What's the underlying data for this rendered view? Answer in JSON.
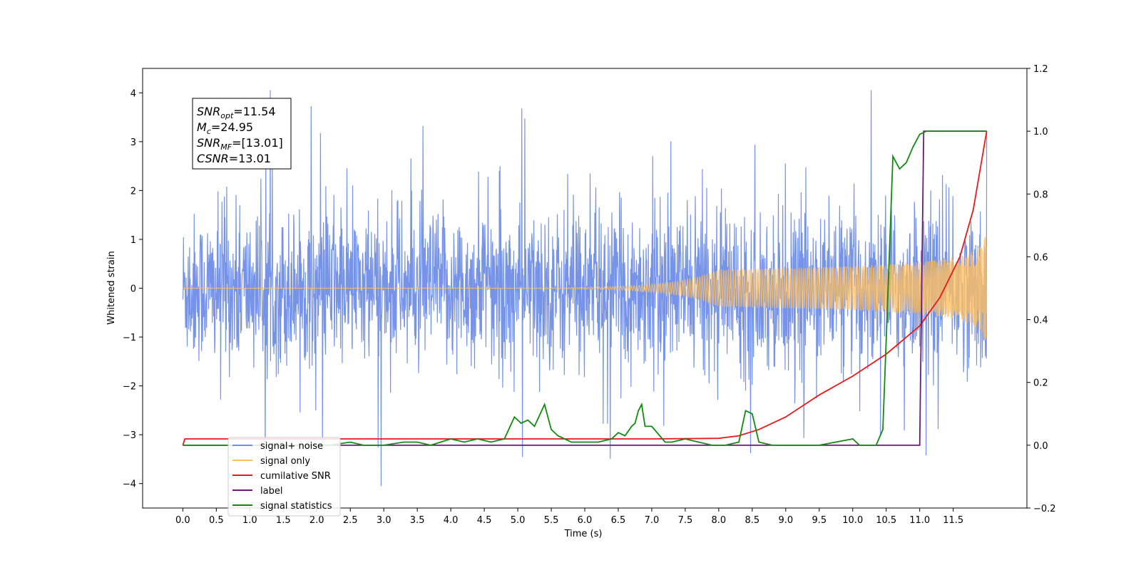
{
  "chart_data": {
    "type": "line",
    "xlabel": "Time (s)",
    "ylabel_left": "Whitened strain",
    "ylabel_right": "",
    "xlim": [
      -0.6,
      12.6
    ],
    "ylim_left": [
      -4.5,
      4.5
    ],
    "ylim_right": [
      -0.2,
      1.2
    ],
    "x_ticks": [
      "0.0",
      "0.5",
      "1.0",
      "1.5",
      "2.0",
      "2.5",
      "3.0",
      "3.5",
      "4.0",
      "4.5",
      "5.0",
      "5.5",
      "6.0",
      "6.5",
      "7.0",
      "7.5",
      "8.0",
      "8.5",
      "9.0",
      "9.5",
      "10.0",
      "10.5",
      "11.0",
      "11.5"
    ],
    "y_ticks_left": [
      "4",
      "3",
      "2",
      "1",
      "0",
      "−1",
      "−2",
      "−3",
      "−4"
    ],
    "y_ticks_right": [
      "1.2",
      "1.0",
      "0.8",
      "0.6",
      "0.4",
      "0.2",
      "0.0",
      "−0.2"
    ],
    "grid": false,
    "legend_position": "lower-left",
    "annotation": {
      "snr_opt": "=11.54",
      "mc": "=24.95",
      "snr_mf": "=[13.01]",
      "csnr": "=13.01"
    },
    "series": [
      {
        "name": "signal+ noise",
        "axis": "left",
        "color": "#6f8de6",
        "style": "noise",
        "x_range": [
          0.0,
          12.0
        ],
        "amplitude_range": [
          -4.05,
          4.05
        ],
        "typical_envelope": [
          -1.5,
          1.5
        ]
      },
      {
        "name": "signal only",
        "axis": "left",
        "color": "#ffbf60",
        "style": "chirp",
        "x_range": [
          0.0,
          12.0
        ],
        "final_amplitude": 1.15
      },
      {
        "name": "cumilative SNR",
        "axis": "right",
        "color": "#e8191b",
        "x": [
          0.0,
          0.03,
          1.0,
          3.0,
          5.0,
          7.0,
          8.0,
          8.3,
          8.6,
          9.0,
          9.5,
          10.0,
          10.5,
          11.0,
          11.3,
          11.6,
          11.8,
          12.0
        ],
        "values": [
          0.0,
          0.02,
          0.02,
          0.02,
          0.02,
          0.02,
          0.022,
          0.03,
          0.05,
          0.09,
          0.16,
          0.22,
          0.29,
          0.38,
          0.47,
          0.6,
          0.75,
          1.0
        ]
      },
      {
        "name": "label",
        "axis": "right",
        "color": "#6b1a7a",
        "x": [
          0.0,
          11.0,
          11.06,
          12.0
        ],
        "values": [
          0.0,
          0.0,
          1.0,
          1.0
        ]
      },
      {
        "name": "signal statistics",
        "axis": "right",
        "color": "#128a12",
        "x": [
          0.0,
          2.2,
          2.5,
          2.7,
          3.0,
          3.3,
          3.5,
          3.7,
          4.0,
          4.2,
          4.4,
          4.6,
          4.8,
          4.95,
          5.05,
          5.15,
          5.25,
          5.4,
          5.5,
          5.6,
          5.7,
          5.8,
          6.0,
          6.2,
          6.4,
          6.5,
          6.6,
          6.7,
          6.75,
          6.8,
          6.85,
          6.9,
          7.0,
          7.2,
          7.3,
          7.5,
          7.7,
          7.9,
          8.1,
          8.3,
          8.4,
          8.5,
          8.6,
          8.8,
          9.0,
          9.5,
          10.0,
          10.1,
          10.2,
          10.35,
          10.45,
          10.52,
          10.6,
          10.7,
          10.8,
          10.9,
          11.0,
          11.1,
          11.3,
          11.6,
          12.0
        ],
        "values": [
          0.0,
          0.0,
          0.01,
          0.0,
          0.0,
          0.01,
          0.01,
          0.0,
          0.02,
          0.01,
          0.02,
          0.01,
          0.02,
          0.09,
          0.07,
          0.08,
          0.06,
          0.13,
          0.05,
          0.03,
          0.02,
          0.01,
          0.01,
          0.01,
          0.02,
          0.04,
          0.03,
          0.06,
          0.07,
          0.11,
          0.13,
          0.06,
          0.06,
          0.01,
          0.01,
          0.02,
          0.01,
          0.0,
          0.0,
          0.01,
          0.11,
          0.1,
          0.01,
          0.0,
          0.0,
          0.0,
          0.02,
          0.0,
          0.0,
          0.0,
          0.05,
          0.45,
          0.92,
          0.88,
          0.9,
          0.95,
          0.99,
          1.0,
          1.0,
          1.0,
          1.0
        ]
      }
    ]
  }
}
